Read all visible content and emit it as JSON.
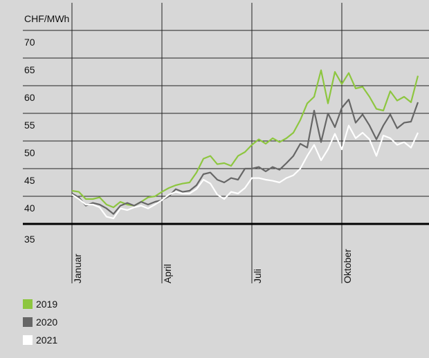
{
  "chart_data": {
    "type": "line",
    "ylabel": "CHF/MWh",
    "ylim": [
      35,
      75
    ],
    "yticks": [
      35,
      40,
      45,
      50,
      55,
      60,
      65,
      70
    ],
    "grid": true,
    "legend": "bottom-left",
    "categories": [
      "Januar",
      null,
      null,
      null,
      null,
      null,
      null,
      null,
      null,
      null,
      null,
      null,
      null,
      "April",
      null,
      null,
      null,
      null,
      null,
      null,
      null,
      null,
      null,
      null,
      null,
      null,
      "Juli",
      null,
      null,
      null,
      null,
      null,
      null,
      null,
      null,
      null,
      null,
      null,
      null,
      "Oktober",
      null,
      null,
      null,
      null,
      null,
      null,
      null,
      null,
      null,
      null,
      null
    ],
    "series": [
      {
        "name": "2019",
        "color": "#8dc63f",
        "values": [
          41.0,
          40.8,
          39.5,
          39.5,
          39.8,
          38.5,
          38.0,
          39.0,
          38.5,
          38.3,
          39.0,
          39.8,
          40.0,
          40.8,
          41.5,
          42.0,
          42.3,
          42.5,
          44.3,
          46.8,
          47.3,
          45.8,
          46.0,
          45.5,
          47.3,
          48.0,
          49.3,
          50.3,
          49.5,
          50.5,
          49.8,
          50.5,
          51.5,
          53.8,
          56.8,
          58.0,
          62.8,
          56.8,
          62.5,
          60.3,
          62.3,
          59.5,
          59.8,
          58.0,
          55.8,
          55.5,
          59.0,
          57.3,
          58.0,
          57.0,
          61.8
        ]
      },
      {
        "name": "2020",
        "color": "#666666",
        "values": [
          40.5,
          39.8,
          38.3,
          38.8,
          38.5,
          37.8,
          36.8,
          38.3,
          38.8,
          38.3,
          39.0,
          38.5,
          39.0,
          39.3,
          40.0,
          41.3,
          40.8,
          41.0,
          42.0,
          44.0,
          44.3,
          43.0,
          42.5,
          43.3,
          43.0,
          45.0,
          45.0,
          45.3,
          44.5,
          45.3,
          44.8,
          46.0,
          47.3,
          49.5,
          48.8,
          55.5,
          49.8,
          55.0,
          52.5,
          56.0,
          57.5,
          53.3,
          54.8,
          52.8,
          50.3,
          52.8,
          54.8,
          52.3,
          53.3,
          53.5,
          57.0
        ]
      },
      {
        "name": "2021",
        "color": "#ffffff",
        "values": [
          40.3,
          39.5,
          38.5,
          38.5,
          38.0,
          36.3,
          36.0,
          37.8,
          37.5,
          38.0,
          38.3,
          37.8,
          38.5,
          39.3,
          40.3,
          40.8,
          40.5,
          40.5,
          41.3,
          43.0,
          42.3,
          40.3,
          39.5,
          40.8,
          40.5,
          41.5,
          43.3,
          43.3,
          43.0,
          42.8,
          42.5,
          43.3,
          43.8,
          45.0,
          47.3,
          49.3,
          46.5,
          48.5,
          51.3,
          48.5,
          52.8,
          50.5,
          51.5,
          50.3,
          47.3,
          51.0,
          50.5,
          49.3,
          49.8,
          48.8,
          51.5
        ]
      }
    ]
  }
}
